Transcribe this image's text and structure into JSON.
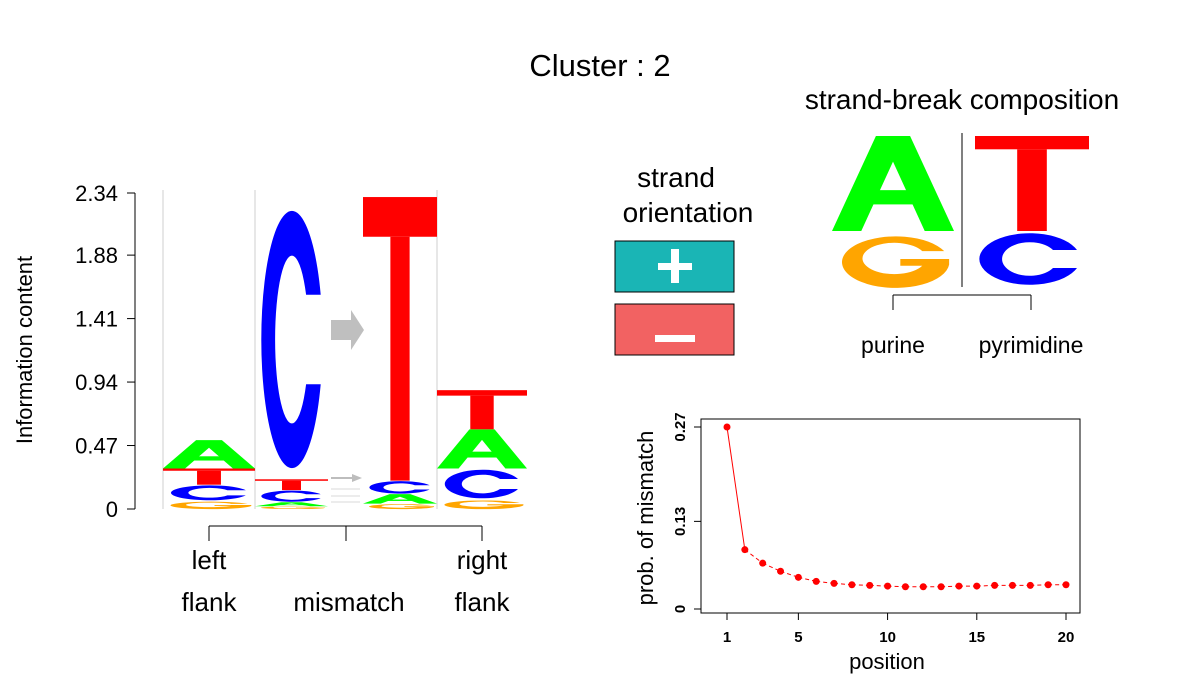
{
  "title": "Cluster : 2",
  "colors": {
    "A": "#00ff00",
    "C": "#0000ff",
    "G": "#ffa500",
    "T": "#ff0000",
    "plus": "#1ab5b5",
    "minus": "#f26262",
    "arrow": "#bfbfbf",
    "line": "#ff0000"
  },
  "logo": {
    "ylabel": "Information content",
    "yticks": [
      "0",
      "0.47",
      "0.94",
      "1.41",
      "1.88",
      "2.34"
    ],
    "regions": [
      {
        "line1": "left",
        "line2": "flank"
      },
      {
        "line1": "",
        "line2": "mismatch"
      },
      {
        "line1": "right",
        "line2": "flank"
      }
    ]
  },
  "strand": {
    "title_line1": "strand",
    "title_line2": "orientation",
    "plus_icon": "plus-icon",
    "minus_icon": "minus-icon"
  },
  "strand_break": {
    "title": "strand-break composition",
    "groups": [
      {
        "label": "purine",
        "letters": [
          "A",
          "G"
        ]
      },
      {
        "label": "pyrimidine",
        "letters": [
          "T",
          "C"
        ]
      }
    ]
  },
  "chart_data": [
    {
      "type": "logo",
      "position": "left flank",
      "ylabel": "Information content",
      "ylim": [
        0,
        2.34
      ],
      "stack": [
        {
          "letter": "G",
          "bits": 0.06
        },
        {
          "letter": "C",
          "bits": 0.12
        },
        {
          "letter": "T",
          "bits": 0.12
        },
        {
          "letter": "A",
          "bits": 0.21
        }
      ]
    },
    {
      "type": "logo",
      "position": "mismatch reference",
      "ylim": [
        0,
        2.34
      ],
      "stack": [
        {
          "letter": "G",
          "bits": 0.02
        },
        {
          "letter": "A",
          "bits": 0.03
        },
        {
          "letter": "C",
          "bits": 0.09
        },
        {
          "letter": "T",
          "bits": 0.08
        },
        {
          "letter": "C",
          "bits": 2.07
        }
      ]
    },
    {
      "type": "logo",
      "position": "mismatch alternative",
      "ylim": [
        0,
        2.34
      ],
      "stack": [
        {
          "letter": "G",
          "bits": 0.04
        },
        {
          "letter": "A",
          "bits": 0.07
        },
        {
          "letter": "C",
          "bits": 0.1
        },
        {
          "letter": "T",
          "bits": 2.1
        }
      ]
    },
    {
      "type": "logo",
      "position": "right flank",
      "ylim": [
        0,
        2.34
      ],
      "stack": [
        {
          "letter": "G",
          "bits": 0.07
        },
        {
          "letter": "C",
          "bits": 0.23
        },
        {
          "letter": "A",
          "bits": 0.29
        },
        {
          "letter": "T",
          "bits": 0.29
        }
      ]
    },
    {
      "type": "line",
      "xlabel": "position",
      "ylabel": "prob. of mismatch",
      "xlim": [
        1,
        20
      ],
      "ylim": [
        0,
        0.27
      ],
      "xticks": [
        "1",
        "5",
        "10",
        "15",
        "20"
      ],
      "yticks": [
        "0",
        "0.13",
        "0.27"
      ],
      "x": [
        1,
        2,
        3,
        4,
        5,
        6,
        7,
        8,
        9,
        10,
        11,
        12,
        13,
        14,
        15,
        16,
        17,
        18,
        19,
        20
      ],
      "y": [
        0.27,
        0.088,
        0.068,
        0.056,
        0.047,
        0.041,
        0.038,
        0.036,
        0.035,
        0.034,
        0.033,
        0.033,
        0.033,
        0.034,
        0.034,
        0.035,
        0.035,
        0.035,
        0.036,
        0.036
      ],
      "grid": false
    }
  ]
}
